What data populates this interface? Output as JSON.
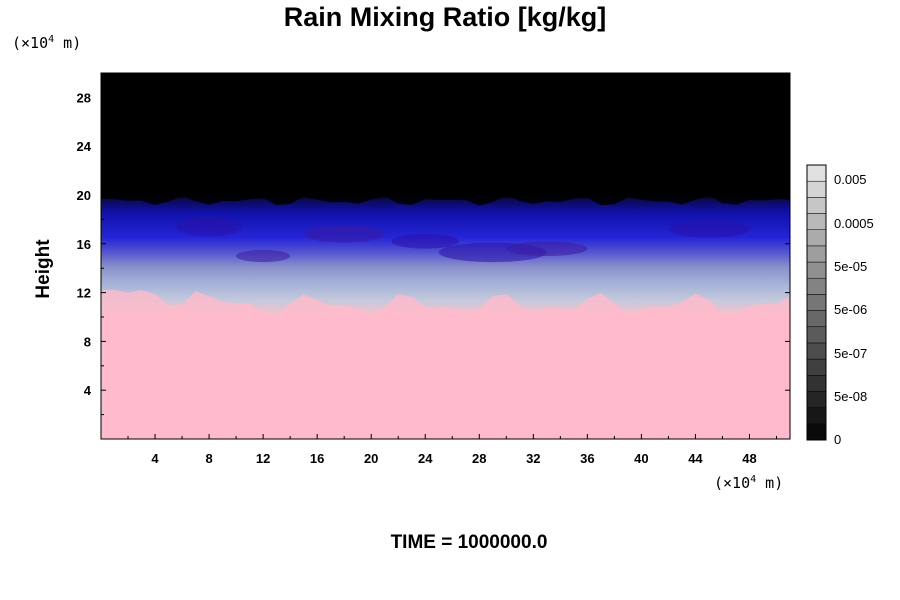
{
  "chart_data": {
    "type": "heatmap",
    "title": "Rain Mixing Ratio [kg/kg]",
    "ylabel": "Height",
    "xlabel": "",
    "x_unit_label": "(×10⁴ m)",
    "y_unit_label": "(×10⁴ m)",
    "footer": "TIME = 1000000.0",
    "xlim": [
      0,
      51
    ],
    "ylim": [
      0,
      30
    ],
    "x_ticks": [
      4,
      8,
      12,
      16,
      20,
      24,
      28,
      32,
      36,
      40,
      44,
      48
    ],
    "y_ticks": [
      4,
      8,
      12,
      16,
      20,
      24,
      28
    ],
    "x_tick_labels": [
      "4",
      "8",
      "12",
      "16",
      "20",
      "24",
      "28",
      "32",
      "36",
      "40",
      "44",
      "48"
    ],
    "y_tick_labels": [
      "4",
      "8",
      "12",
      "16",
      "20",
      "24",
      "28"
    ],
    "colorbar_labels": [
      "0.005",
      "0.0005",
      "5e-05",
      "5e-06",
      "5e-07",
      "5e-08",
      "0"
    ],
    "layers": [
      {
        "region": "upper",
        "y_range": [
          19.5,
          30
        ],
        "color": "#000000"
      },
      {
        "region": "blue band",
        "y_range": [
          15.5,
          19.5
        ],
        "color": "#1a1acc"
      },
      {
        "region": "lavender band",
        "y_range": [
          11,
          15.5
        ],
        "color": "#aab4d8"
      },
      {
        "region": "lower",
        "y_range": [
          0,
          11
        ],
        "color": "#ffb8c8"
      }
    ]
  }
}
